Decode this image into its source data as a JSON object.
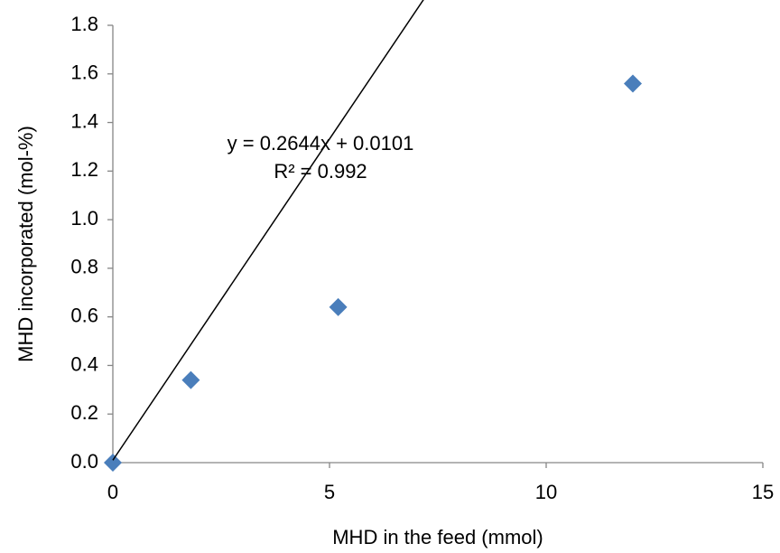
{
  "chart_data": {
    "type": "scatter",
    "x_label": "MHD in the feed (mmol)",
    "y_label": "MHD incorporated (mol-%)",
    "series": [
      {
        "color": "#4a7ebb",
        "x": [
          0,
          1.8,
          5.2,
          12
        ],
        "values": [
          0,
          0.34,
          0.64,
          1.56
        ]
      }
    ],
    "trendline": {
      "slope": 0.2644,
      "intercept": 0.0101,
      "color": "#000000",
      "equation_label": "y = 0.2644x + 0.0101",
      "r2_label": "R² = 0.992"
    },
    "xlim": [
      0,
      15
    ],
    "xticks": [
      0,
      5,
      10,
      15
    ],
    "ylim": [
      0,
      1.8
    ],
    "yticks": [
      {
        "value": 0,
        "label": "0.0"
      },
      0.2,
      0.4,
      0.6,
      0.8,
      {
        "value": 1,
        "label": "1.0"
      },
      1.2,
      1.4,
      1.6,
      1.8
    ],
    "grid": false
  }
}
